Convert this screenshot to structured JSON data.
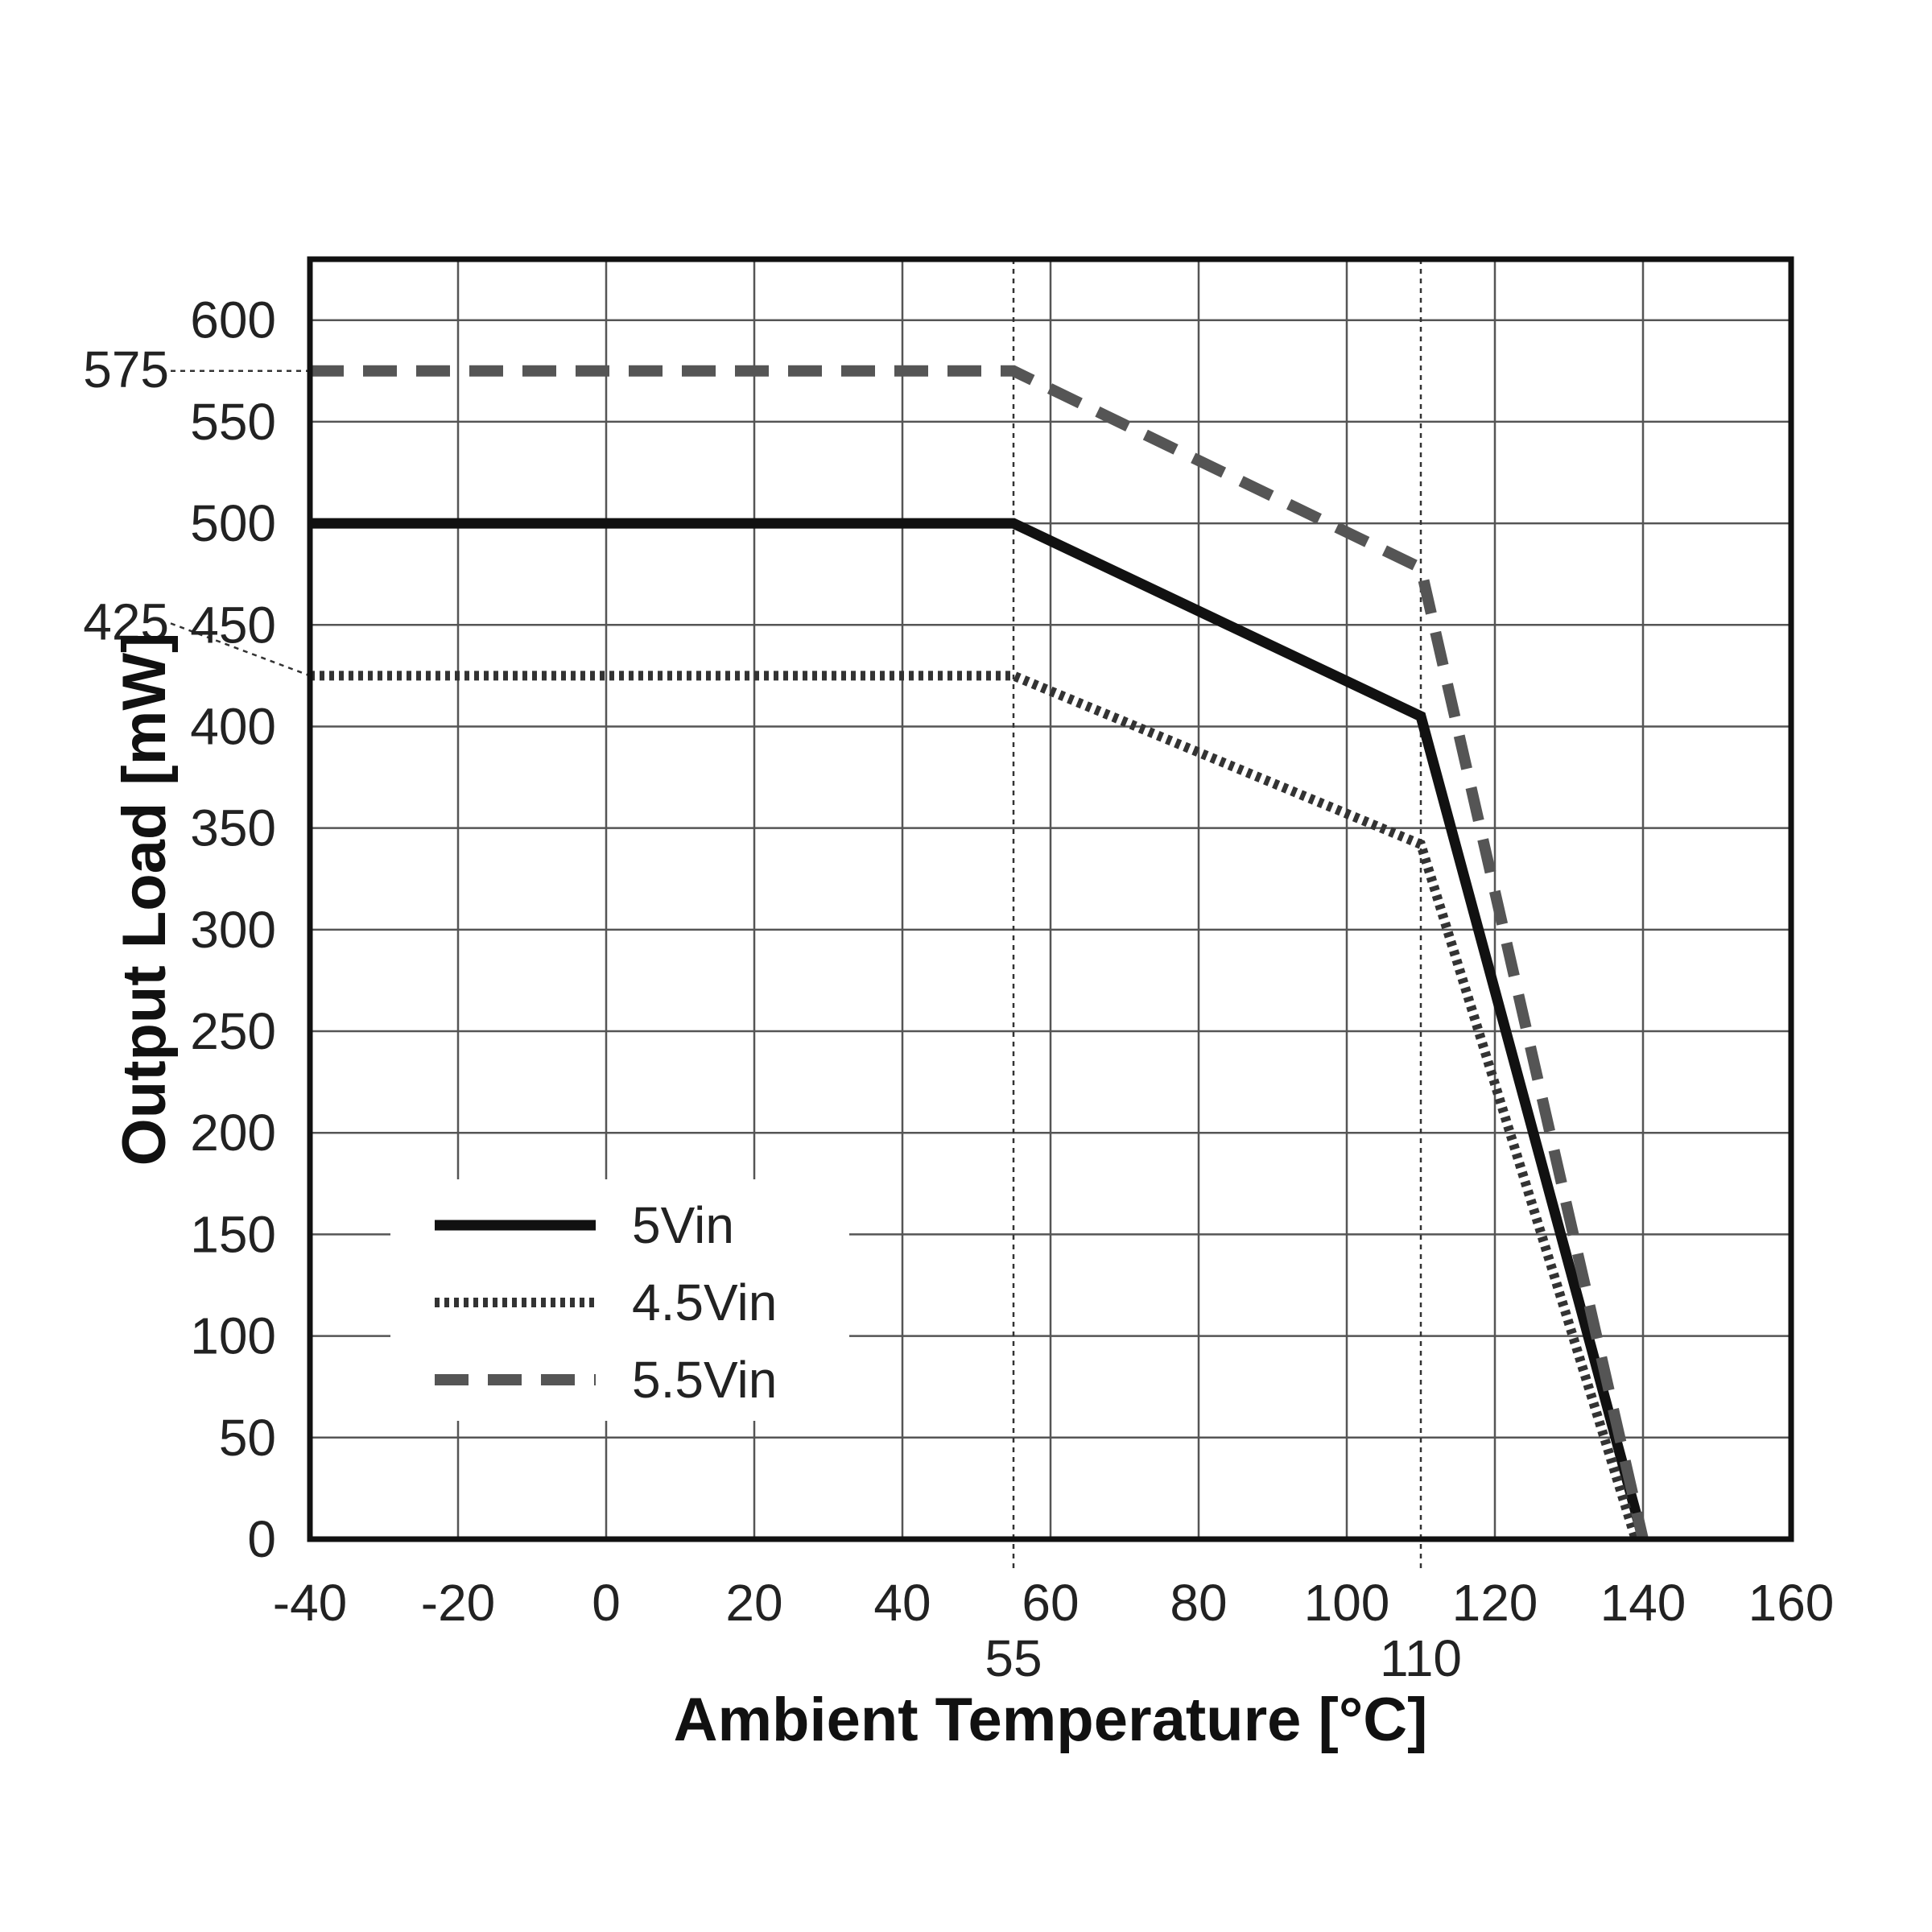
{
  "chart_data": {
    "type": "line",
    "title": "",
    "xlabel": "Ambient Temperature [°C]",
    "ylabel": "Output Load [mW]",
    "xlim": [
      -40,
      160
    ],
    "ylim": [
      0,
      630
    ],
    "x_ticks": [
      "-40",
      "-20",
      "0",
      "20",
      "40",
      "60",
      "80",
      "100",
      "120",
      "140",
      "160"
    ],
    "y_ticks": [
      "0",
      "50",
      "100",
      "150",
      "200",
      "250",
      "300",
      "350",
      "400",
      "450",
      "500",
      "550",
      "600"
    ],
    "grid": true,
    "legend_position": "bottom-left",
    "series": [
      {
        "name": "5Vin",
        "style": "solid",
        "color": "#111111",
        "x": [
          -40,
          55,
          110,
          140
        ],
        "y": [
          500,
          500,
          405,
          0
        ]
      },
      {
        "name": "4.5Vin",
        "style": "dotted",
        "color": "#333333",
        "x": [
          -40,
          55,
          110,
          139
        ],
        "y": [
          425,
          425,
          342,
          0
        ]
      },
      {
        "name": "5.5Vin",
        "style": "dashed",
        "color": "#555555",
        "x": [
          -40,
          55,
          110,
          140
        ],
        "y": [
          575,
          575,
          478,
          0
        ]
      }
    ],
    "annotations": [
      {
        "axis": "x",
        "value": 55,
        "label": "55"
      },
      {
        "axis": "x",
        "value": 110,
        "label": "110"
      },
      {
        "axis": "y",
        "value": 575,
        "label": "575"
      },
      {
        "axis": "y",
        "value": 425,
        "label": "425"
      }
    ]
  }
}
